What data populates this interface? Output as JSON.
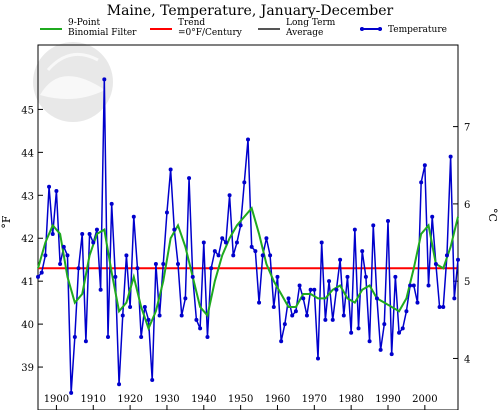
{
  "chart_data": {
    "type": "line",
    "title": "Maine, Temperature, January-December",
    "ylabel_left": "°F",
    "ylabel_right": "°C",
    "xlim": [
      1895,
      2009
    ],
    "ylim": [
      38,
      46.5
    ],
    "ylim_c": [
      3.333,
      8.056
    ],
    "x_ticks": [
      1900,
      1910,
      1920,
      1930,
      1940,
      1950,
      1960,
      1970,
      1980,
      1990,
      2000
    ],
    "y_ticks": [
      39,
      40,
      41,
      42,
      43,
      44,
      45
    ],
    "y_ticks_c": [
      4,
      5,
      6,
      7
    ],
    "legend": [
      {
        "label_lines": [
          "9-Point",
          "Binomial Filter"
        ],
        "color": "#1faa1f"
      },
      {
        "label_lines": [
          "Trend",
          "=0°F/Century"
        ],
        "color": "#ff0000"
      },
      {
        "label_lines": [
          "Long Term",
          "Average"
        ],
        "color": "#555555"
      },
      {
        "label_lines": [
          "Temperature"
        ],
        "color": "#0000cc"
      }
    ],
    "trend_value": 41.3,
    "series": [
      {
        "name": "Temperature",
        "color": "#0000cc",
        "x": [
          1895,
          1896,
          1897,
          1898,
          1899,
          1900,
          1901,
          1902,
          1903,
          1904,
          1905,
          1906,
          1907,
          1908,
          1909,
          1910,
          1911,
          1912,
          1913,
          1914,
          1915,
          1916,
          1917,
          1918,
          1919,
          1920,
          1921,
          1922,
          1923,
          1924,
          1925,
          1926,
          1927,
          1928,
          1929,
          1930,
          1931,
          1932,
          1933,
          1934,
          1935,
          1936,
          1937,
          1938,
          1939,
          1940,
          1941,
          1942,
          1943,
          1944,
          1945,
          1946,
          1947,
          1948,
          1949,
          1950,
          1951,
          1952,
          1953,
          1954,
          1955,
          1956,
          1957,
          1958,
          1959,
          1960,
          1961,
          1962,
          1963,
          1964,
          1965,
          1966,
          1967,
          1968,
          1969,
          1970,
          1971,
          1972,
          1973,
          1974,
          1975,
          1976,
          1977,
          1978,
          1979,
          1980,
          1981,
          1982,
          1983,
          1984,
          1985,
          1986,
          1987,
          1988,
          1989,
          1990,
          1991,
          1992,
          1993,
          1994,
          1995,
          1996,
          1997,
          1998,
          1999,
          2000,
          2001,
          2002,
          2003,
          2004,
          2005,
          2006,
          2007,
          2008,
          2009
        ],
        "values": [
          41.1,
          41.2,
          41.6,
          43.2,
          42.1,
          43.1,
          41.4,
          41.8,
          41.6,
          38.4,
          39.7,
          41.3,
          42.1,
          39.6,
          42.1,
          41.9,
          42.2,
          40.8,
          45.7,
          39.7,
          42.8,
          41.1,
          38.6,
          40.2,
          41.6,
          40.4,
          42.5,
          41.3,
          39.7,
          40.4,
          40.1,
          38.7,
          41.4,
          40.2,
          41.4,
          42.6,
          43.6,
          42.2,
          41.4,
          40.2,
          40.6,
          43.4,
          41.1,
          40.1,
          39.9,
          41.9,
          39.7,
          41.3,
          41.7,
          41.6,
          42.0,
          41.9,
          43.0,
          41.6,
          41.9,
          42.3,
          43.3,
          44.3,
          41.8,
          41.7,
          40.5,
          41.6,
          42.0,
          41.6,
          40.4,
          41.1,
          39.6,
          40.0,
          40.6,
          40.2,
          40.3,
          40.9,
          40.6,
          40.2,
          40.8,
          40.8,
          39.2,
          41.9,
          40.1,
          41.0,
          40.1,
          40.8,
          41.5,
          40.2,
          41.1,
          39.8,
          42.2,
          39.9,
          41.7,
          41.1,
          39.6,
          42.3,
          40.6,
          39.4,
          40.0,
          42.4,
          39.3,
          41.1,
          39.8,
          39.9,
          40.3,
          40.9,
          40.9,
          40.5,
          43.3,
          43.7,
          40.9,
          42.5,
          41.4,
          40.4,
          40.4,
          41.6,
          43.9,
          40.6,
          41.5
        ]
      },
      {
        "name": "9-Point Binomial Filter",
        "color": "#1faa1f",
        "x": [
          1895,
          1897,
          1899,
          1901,
          1903,
          1905,
          1907,
          1909,
          1911,
          1913,
          1915,
          1917,
          1919,
          1921,
          1923,
          1925,
          1927,
          1929,
          1931,
          1933,
          1935,
          1937,
          1939,
          1941,
          1943,
          1945,
          1947,
          1949,
          1951,
          1953,
          1955,
          1957,
          1959,
          1961,
          1963,
          1965,
          1967,
          1969,
          1971,
          1973,
          1975,
          1977,
          1979,
          1981,
          1983,
          1985,
          1987,
          1989,
          1991,
          1993,
          1995,
          1997,
          1999,
          2001,
          2003,
          2005,
          2007,
          2009
        ],
        "values": [
          41.3,
          41.9,
          42.3,
          42.1,
          41.1,
          40.5,
          40.7,
          41.6,
          42.1,
          42.2,
          41.2,
          40.3,
          40.5,
          41.1,
          40.4,
          39.9,
          40.3,
          41.0,
          42.0,
          42.3,
          41.8,
          41.1,
          40.4,
          40.2,
          41.0,
          41.6,
          42.0,
          42.3,
          42.5,
          42.7,
          42.1,
          41.4,
          41.0,
          40.7,
          40.4,
          40.4,
          40.7,
          40.7,
          40.6,
          40.6,
          40.8,
          40.9,
          40.6,
          40.5,
          40.8,
          40.9,
          40.6,
          40.5,
          40.4,
          40.3,
          40.6,
          41.3,
          42.1,
          42.3,
          41.4,
          41.3,
          41.8,
          42.5
        ]
      }
    ]
  }
}
